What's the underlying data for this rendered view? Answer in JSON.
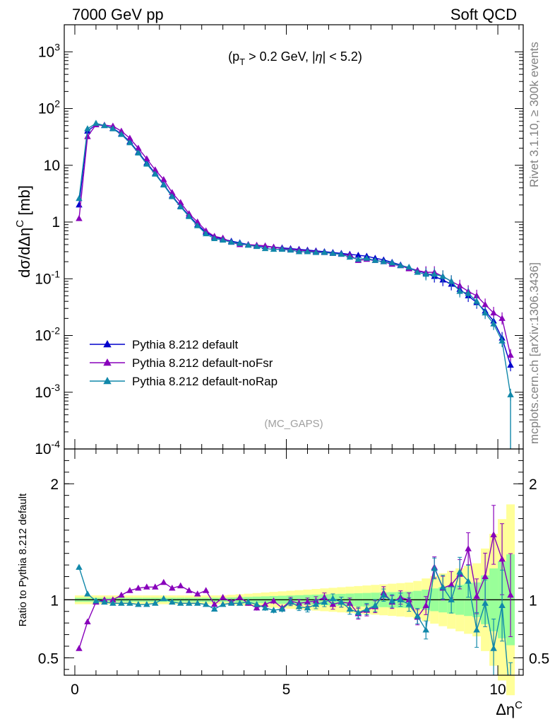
{
  "header": {
    "left": "7000 GeV pp",
    "right": "Soft QCD"
  },
  "annotation": "(p_T > 0.2 GeV, |η| < 5.2)",
  "analysis_tag": "(MC_GAPS)",
  "side_labels": {
    "rivet": "Rivet 3.1.10, ≥ 300k events",
    "mcplots": "mcplots.cern.ch [arXiv:1306.3436]"
  },
  "colors": {
    "default": "#0000cc",
    "noFsr": "#8800bb",
    "noRap": "#1188aa",
    "band_yellow": "#ffff99",
    "band_green": "#99ff99"
  },
  "chart_data": [
    {
      "type": "line",
      "panel": "main",
      "ylabel": "dσ/dΔη^C [mb]",
      "xlabel": "",
      "yscale": "log",
      "ylim": [
        0.0001,
        3000
      ],
      "xlim": [
        -0.25,
        10.6
      ],
      "y_tick_labels": [
        "10^-4",
        "10^-3",
        "10^-2",
        "10^-1",
        "1",
        "10",
        "10^2",
        "10^3"
      ],
      "legend": [
        "Pythia 8.212 default",
        "Pythia 8.212 default-noFsr",
        "Pythia 8.212 default-noRap"
      ],
      "legend_position": "lower-left",
      "x": [
        0.1,
        0.3,
        0.5,
        0.7,
        0.9,
        1.1,
        1.3,
        1.5,
        1.7,
        1.9,
        2.1,
        2.3,
        2.5,
        2.7,
        2.9,
        3.1,
        3.3,
        3.5,
        3.7,
        3.9,
        4.1,
        4.3,
        4.5,
        4.7,
        4.9,
        5.1,
        5.3,
        5.5,
        5.7,
        5.9,
        6.1,
        6.3,
        6.5,
        6.7,
        6.9,
        7.1,
        7.3,
        7.5,
        7.7,
        7.9,
        8.1,
        8.3,
        8.5,
        8.7,
        8.9,
        9.1,
        9.3,
        9.5,
        9.7,
        9.9,
        10.1,
        10.3
      ],
      "series": [
        {
          "name": "Pythia 8.212 default",
          "values": [
            2.0,
            40,
            52,
            50,
            45,
            36,
            26,
            17,
            11,
            7.2,
            4.6,
            2.9,
            1.9,
            1.3,
            0.9,
            0.66,
            0.54,
            0.5,
            0.46,
            0.43,
            0.4,
            0.38,
            0.37,
            0.36,
            0.35,
            0.34,
            0.33,
            0.32,
            0.31,
            0.3,
            0.29,
            0.28,
            0.27,
            0.26,
            0.25,
            0.23,
            0.215,
            0.195,
            0.175,
            0.155,
            0.14,
            0.125,
            0.11,
            0.095,
            0.08,
            0.065,
            0.05,
            0.038,
            0.027,
            0.018,
            0.009,
            0.003
          ]
        },
        {
          "name": "Pythia 8.212 default-noFsr",
          "values": [
            1.15,
            32,
            52,
            51,
            49,
            40,
            30,
            20,
            13,
            8.3,
            5.6,
            3.3,
            2.2,
            1.4,
            1.0,
            0.7,
            0.56,
            0.52,
            0.44,
            0.4,
            0.4,
            0.39,
            0.38,
            0.36,
            0.34,
            0.33,
            0.32,
            0.31,
            0.3,
            0.29,
            0.28,
            0.27,
            0.26,
            0.21,
            0.22,
            0.21,
            0.2,
            0.18,
            0.17,
            0.15,
            0.14,
            0.13,
            0.13,
            0.11,
            0.09,
            0.075,
            0.06,
            0.05,
            0.035,
            0.025,
            0.02,
            0.0045
          ]
        },
        {
          "name": "Pythia 8.212 default-noRap",
          "values": [
            2.6,
            44,
            55,
            50,
            44,
            35,
            25,
            16.5,
            10.5,
            7.0,
            4.5,
            2.8,
            1.85,
            1.25,
            0.86,
            0.62,
            0.51,
            0.48,
            0.44,
            0.42,
            0.39,
            0.37,
            0.34,
            0.33,
            0.33,
            0.32,
            0.3,
            0.3,
            0.29,
            0.29,
            0.28,
            0.27,
            0.24,
            0.22,
            0.23,
            0.21,
            0.2,
            0.19,
            0.17,
            0.16,
            0.13,
            0.12,
            0.12,
            0.11,
            0.09,
            0.06,
            0.055,
            0.04,
            0.025,
            0.016,
            0.008,
            0.0009
          ]
        }
      ]
    },
    {
      "type": "line",
      "panel": "ratio",
      "ylabel": "Ratio to Pythia 8.212 default",
      "xlabel": "Δη^C",
      "ylim": [
        0.35,
        2.3
      ],
      "xlim": [
        -0.25,
        10.6
      ],
      "x_tick_labels": [
        "0",
        "5",
        "10"
      ],
      "y_tick_labels": [
        "0.5",
        "1",
        "2"
      ],
      "x": [
        0.1,
        0.3,
        0.5,
        0.7,
        0.9,
        1.1,
        1.3,
        1.5,
        1.7,
        1.9,
        2.1,
        2.3,
        2.5,
        2.7,
        2.9,
        3.1,
        3.3,
        3.5,
        3.7,
        3.9,
        4.1,
        4.3,
        4.5,
        4.7,
        4.9,
        5.1,
        5.3,
        5.5,
        5.7,
        5.9,
        6.1,
        6.3,
        6.5,
        6.7,
        6.9,
        7.1,
        7.3,
        7.5,
        7.7,
        7.9,
        8.1,
        8.3,
        8.5,
        8.7,
        8.9,
        9.1,
        9.3,
        9.5,
        9.7,
        9.9,
        10.1,
        10.3
      ],
      "series": [
        {
          "name": "Pythia 8.212 default-noFsr",
          "values": [
            0.58,
            0.81,
            0.98,
            1.0,
            1.0,
            1.04,
            1.08,
            1.1,
            1.11,
            1.11,
            1.15,
            1.1,
            1.12,
            1.08,
            1.05,
            1.08,
            0.96,
            1.02,
            0.98,
            1.02,
            0.97,
            0.93,
            0.96,
            0.99,
            0.93,
            0.99,
            0.97,
            0.98,
            0.99,
            1.02,
            0.96,
            0.98,
            0.97,
            0.88,
            0.91,
            0.94,
            1.06,
            0.98,
            1.02,
            1.0,
            0.85,
            0.95,
            1.28,
            1.1,
            1.13,
            1.22,
            1.44,
            1.03,
            1.2,
            1.56,
            1.35,
            1.04
          ]
        },
        {
          "name": "Pythia 8.212 default-noRap",
          "values": [
            1.28,
            1.05,
            0.99,
            0.98,
            0.97,
            0.97,
            0.97,
            0.96,
            0.96,
            0.97,
            1.01,
            0.98,
            0.97,
            0.97,
            0.97,
            0.96,
            0.92,
            0.96,
            0.97,
            0.97,
            0.98,
            0.96,
            0.93,
            0.91,
            0.92,
            0.98,
            0.94,
            0.93,
            0.96,
            0.98,
            1.01,
            0.98,
            0.92,
            0.89,
            0.92,
            0.95,
            1.04,
            0.99,
            1.0,
            0.96,
            0.86,
            0.74,
            1.27,
            1.11,
            1.0,
            1.24,
            1.16,
            0.74,
            0.97,
            0.58,
            0.95,
            0.1
          ]
        }
      ]
    }
  ]
}
